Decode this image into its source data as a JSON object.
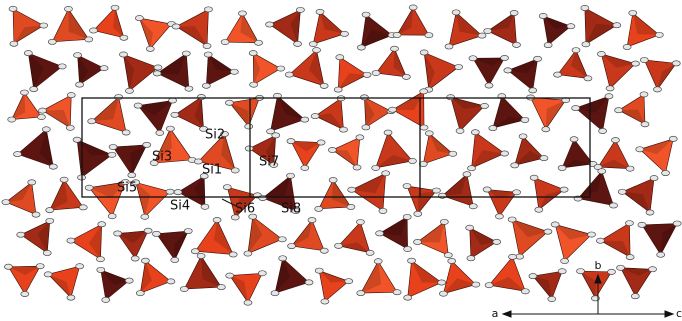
{
  "labels": [
    "Si1",
    "Si2",
    "Si3",
    "Si4",
    "Si5",
    "Si6",
    "Si7",
    "Si8"
  ],
  "axes": {
    "a": "a",
    "b": "b",
    "c": "c"
  }
}
